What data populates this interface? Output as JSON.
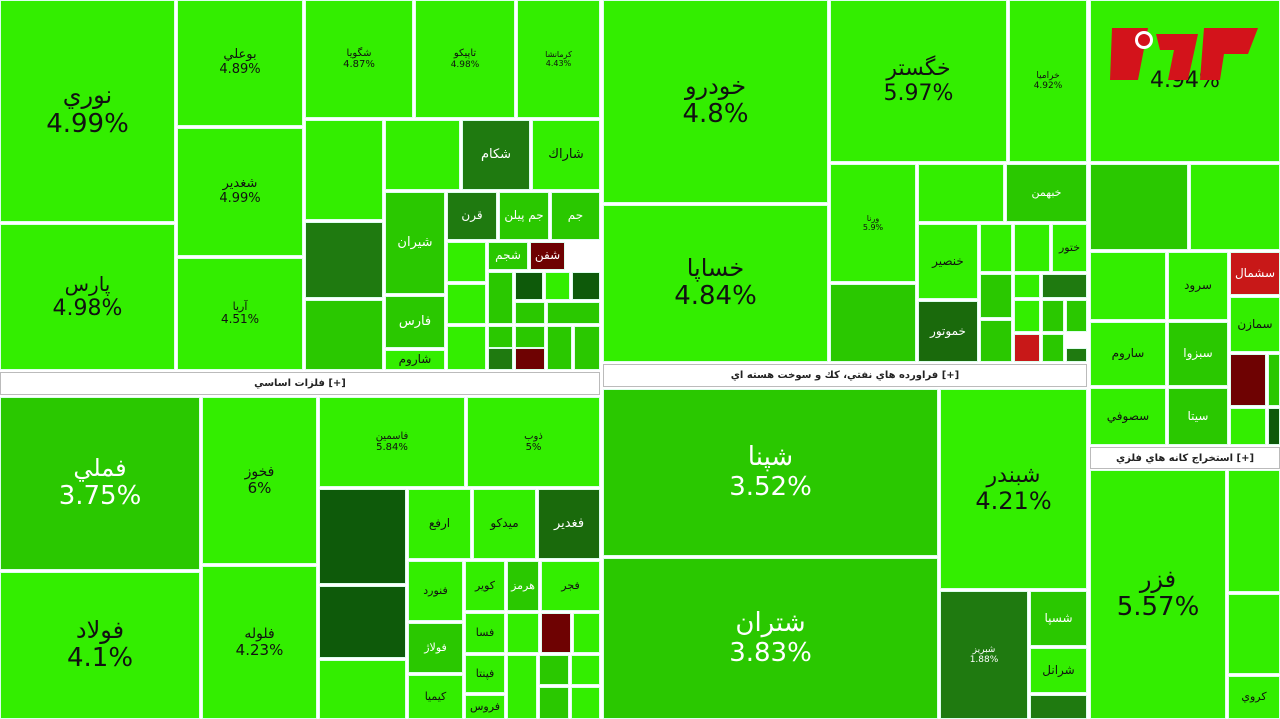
{
  "sectors": [
    {
      "title": "فلزات اساسي [+]"
    },
    {
      "title": "فراورده هاي نفتي، كك و سوخت هسته اي [+]"
    },
    {
      "title": "استخراج كانه هاي فلزي [+]"
    }
  ],
  "tiles": [
    {
      "label": "نوري",
      "change": "4.99%",
      "color": "#33ee00"
    },
    {
      "label": "پارس",
      "change": "4.98%",
      "color": "#33ee00"
    },
    {
      "label": "بوعلي",
      "change": "4.89%",
      "color": "#33ee00"
    },
    {
      "label": "شغدير",
      "change": "4.99%",
      "color": "#33ee00"
    },
    {
      "label": "آريا",
      "change": "4.51%",
      "color": "#33ee00"
    },
    {
      "label": "شگويا",
      "change": "4.87%",
      "color": "#33ee00"
    },
    {
      "label": "تاپيكو",
      "change": "4.98%",
      "color": "#33ee00"
    },
    {
      "label": "كرمانشا",
      "change": "4.43%",
      "color": "#33ee00"
    },
    {
      "label": "شكام",
      "color": "#1f7a10"
    },
    {
      "label": "شاراك",
      "color": "#33ee00"
    },
    {
      "label": "شيران",
      "color": "#2ac800"
    },
    {
      "label": "قرن",
      "color": "#1f7a10"
    },
    {
      "label": "جم پيلن",
      "color": "#2ac800"
    },
    {
      "label": "جم",
      "color": "#2ac800"
    },
    {
      "label": "شجم",
      "color": "#2ac800"
    },
    {
      "label": "شفن",
      "color": "#6e0202"
    },
    {
      "label": "فارس",
      "color": "#2ac800"
    },
    {
      "label": "شاروم",
      "color": "#33ee00"
    },
    {
      "label": "خودرو",
      "change": "4.8%",
      "color": "#33ee00"
    },
    {
      "label": "خساپا",
      "change": "4.84%",
      "color": "#33ee00"
    },
    {
      "label": "خگستر",
      "change": "5.97%",
      "color": "#33ee00"
    },
    {
      "label": "خراميا",
      "change": "4.92%",
      "color": "#33ee00"
    },
    {
      "label": "ورنا",
      "change": "5.9%",
      "color": "#33ee00"
    },
    {
      "label": "خبهمن",
      "color": "#2ac800"
    },
    {
      "label": "خنصير",
      "color": "#33ee00"
    },
    {
      "label": "خموتور",
      "color": "#1a6a0c"
    },
    {
      "label": "ختور",
      "color": "#33ee00"
    },
    {
      "change": "4.94%",
      "color": "#33ee00"
    },
    {
      "label": "سرود",
      "color": "#33ee00"
    },
    {
      "label": "سشمال",
      "color": "#c81818"
    },
    {
      "label": "سمازن",
      "color": "#33ee00"
    },
    {
      "label": "ساروم",
      "color": "#33ee00"
    },
    {
      "label": "سبزوا",
      "color": "#2ac800"
    },
    {
      "label": "سصوفي",
      "color": "#33ee00"
    },
    {
      "label": "سيتا",
      "color": "#2ac800"
    },
    {
      "label": "فملي",
      "change": "3.75%",
      "color": "#2ac800"
    },
    {
      "label": "فولاد",
      "change": "4.1%",
      "color": "#33ee00"
    },
    {
      "label": "فخوز",
      "change": "6%",
      "color": "#33ee00"
    },
    {
      "label": "فلوله",
      "change": "4.23%",
      "color": "#33ee00"
    },
    {
      "label": "فاسمين",
      "change": "5.84%",
      "color": "#33ee00"
    },
    {
      "label": "ذوب",
      "change": "5%",
      "color": "#33ee00"
    },
    {
      "label": "ارفع",
      "color": "#33ee00"
    },
    {
      "label": "ميدكو",
      "color": "#33ee00"
    },
    {
      "label": "فغدير",
      "color": "#1a6a0c"
    },
    {
      "label": "فنورد",
      "color": "#33ee00"
    },
    {
      "label": "كوير",
      "color": "#33ee00"
    },
    {
      "label": "هرمز",
      "color": "#2ac800"
    },
    {
      "label": "فجر",
      "color": "#33ee00"
    },
    {
      "label": "فولاژ",
      "color": "#2ac800"
    },
    {
      "label": "فسا",
      "color": "#33ee00"
    },
    {
      "label": "كيميا",
      "color": "#33ee00"
    },
    {
      "label": "فپنتا",
      "color": "#33ee00"
    },
    {
      "label": "فروس",
      "color": "#33ee00"
    },
    {
      "label": "شپنا",
      "change": "3.52%",
      "color": "#2ac800"
    },
    {
      "label": "شتران",
      "change": "3.83%",
      "color": "#2ac800"
    },
    {
      "label": "شبندر",
      "change": "4.21%",
      "color": "#33ee00"
    },
    {
      "label": "شبريز",
      "change": "1.88%",
      "color": "#1f7a10"
    },
    {
      "label": "شسپا",
      "color": "#2ac800"
    },
    {
      "label": "شرانل",
      "color": "#33ee00"
    },
    {
      "label": "فزر",
      "change": "5.57%",
      "color": "#33ee00"
    },
    {
      "label": "كروي",
      "color": "#33ee00"
    }
  ]
}
